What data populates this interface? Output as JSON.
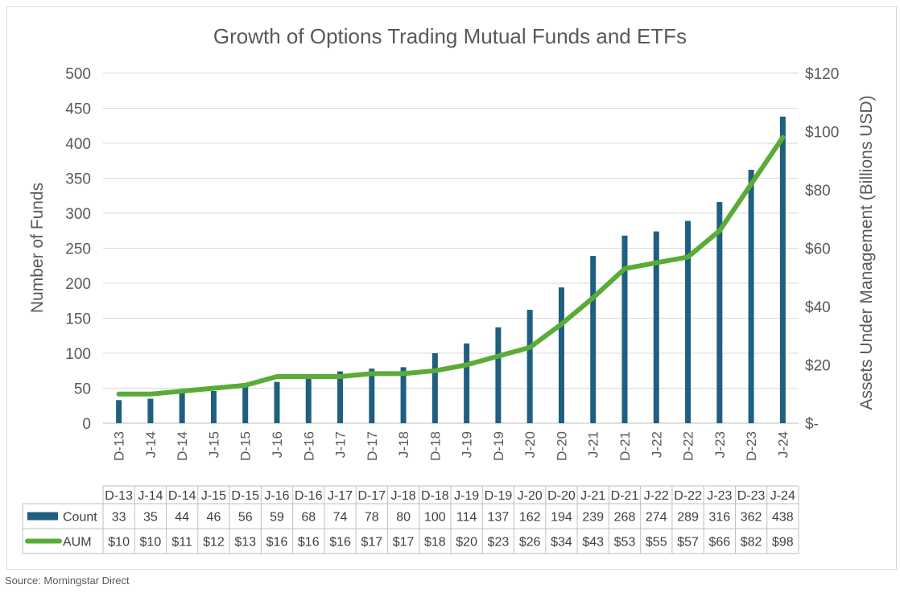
{
  "chart_data": {
    "type": "bar",
    "title": "Growth of Options Trading Mutual Funds and ETFs",
    "categories": [
      "D-13",
      "J-14",
      "D-14",
      "J-15",
      "D-15",
      "J-16",
      "D-16",
      "J-17",
      "D-17",
      "J-18",
      "D-18",
      "J-19",
      "D-19",
      "J-20",
      "D-20",
      "J-21",
      "D-21",
      "J-22",
      "D-22",
      "J-23",
      "D-23",
      "J-24"
    ],
    "series": [
      {
        "name": "Count",
        "type": "bar",
        "axis": "left",
        "color": "#1f5f80",
        "values": [
          33,
          35,
          44,
          46,
          56,
          59,
          68,
          74,
          78,
          80,
          100,
          114,
          137,
          162,
          194,
          239,
          268,
          274,
          289,
          316,
          362,
          438
        ]
      },
      {
        "name": "AUM",
        "type": "line",
        "axis": "right",
        "color": "#5aac37",
        "values": [
          10,
          10,
          11,
          12,
          13,
          16,
          16,
          16,
          17,
          17,
          18,
          20,
          23,
          26,
          34,
          43,
          53,
          55,
          57,
          66,
          82,
          98
        ]
      }
    ],
    "ylabel": "Number of Funds",
    "ylabel_right": "Assets Under Management (Billions USD)",
    "ylim": [
      0,
      500
    ],
    "ylim_right": [
      0,
      120
    ],
    "yticks": [
      "0",
      "50",
      "100",
      "150",
      "200",
      "250",
      "300",
      "350",
      "400",
      "450",
      "500"
    ],
    "yticks_right": [
      "$-",
      "$20",
      "$40",
      "$60",
      "$80",
      "$100",
      "$120"
    ],
    "grid": true,
    "data_table": {
      "header": [
        "D-13",
        "J-14",
        "D-14",
        "J-15",
        "D-15",
        "J-16",
        "D-16",
        "J-17",
        "D-17",
        "J-18",
        "D-18",
        "J-19",
        "D-19",
        "J-20",
        "D-20",
        "J-21",
        "D-21",
        "J-22",
        "D-22",
        "J-23",
        "D-23",
        "J-24"
      ],
      "rows": [
        {
          "label": "Count",
          "cells": [
            "33",
            "35",
            "44",
            "46",
            "56",
            "59",
            "68",
            "74",
            "78",
            "80",
            "100",
            "114",
            "137",
            "162",
            "194",
            "239",
            "268",
            "274",
            "289",
            "316",
            "362",
            "438"
          ]
        },
        {
          "label": "AUM",
          "cells": [
            "$10",
            "$10",
            "$11",
            "$12",
            "$13",
            "$16",
            "$16",
            "$16",
            "$17",
            "$17",
            "$18",
            "$20",
            "$23",
            "$26",
            "$34",
            "$43",
            "$53",
            "$55",
            "$57",
            "$66",
            "$82",
            "$98"
          ]
        }
      ]
    }
  },
  "source": "Source: Morningstar Direct"
}
